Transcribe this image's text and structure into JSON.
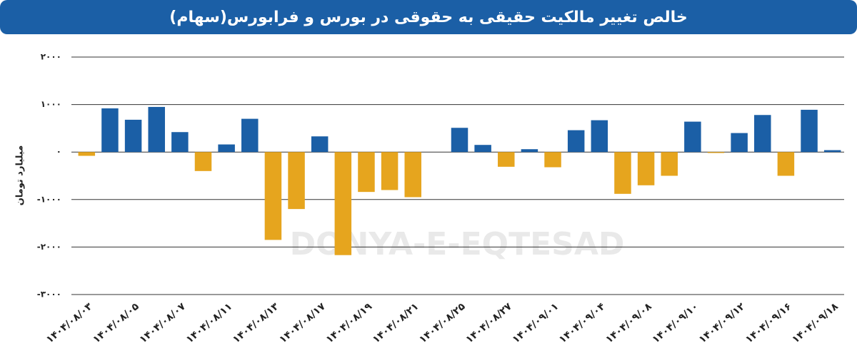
{
  "chart_data": {
    "type": "bar",
    "title": "خالص تغییر مالکیت حقیقی به حقوقی در بورس و فرابورس(سهام)",
    "y_label": "میلیارد تومان",
    "watermark": "DONYA-E-EQTESAD",
    "categories": [
      "۱۴۰۴/۰۸/۰۳",
      null,
      "۱۴۰۴/۰۸/۰۵",
      null,
      "۱۴۰۴/۰۸/۰۷",
      null,
      "۱۴۰۴/۰۸/۱۱",
      null,
      "۱۴۰۴/۰۸/۱۳",
      null,
      "۱۴۰۴/۰۸/۱۷",
      null,
      "۱۴۰۴/۰۸/۱۹",
      null,
      "۱۴۰۴/۰۸/۲۱",
      null,
      "۱۴۰۴/۰۸/۲۵",
      null,
      "۱۴۰۴/۰۸/۲۷",
      null,
      "۱۴۰۴/۰۹/۰۱",
      null,
      "۱۴۰۴/۰۹/۰۴",
      null,
      "۱۴۰۴/۰۹/۰۸",
      null,
      "۱۴۰۴/۰۹/۱۰",
      null,
      "۱۴۰۴/۰۹/۱۲",
      null,
      "۱۴۰۴/۰۹/۱۶",
      null,
      "۱۴۰۴/۰۹/۱۸"
    ],
    "values": [
      -80,
      920,
      680,
      950,
      420,
      -400,
      160,
      700,
      -1850,
      -1200,
      330,
      -2170,
      -840,
      -800,
      -950,
      0,
      510,
      150,
      -310,
      60,
      -320,
      460,
      670,
      -880,
      -700,
      -500,
      640,
      -20,
      400,
      780,
      -500,
      890,
      40
    ],
    "positive_color": "#1b5fa6",
    "negative_color": "#e6a51e",
    "ylim": [
      -3000,
      2000
    ],
    "yticks": [
      {
        "value": -3000,
        "label": "-۳۰۰۰"
      },
      {
        "value": -2000,
        "label": "-۲۰۰۰"
      },
      {
        "value": -1000,
        "label": "-۱۰۰۰"
      },
      {
        "value": 0,
        "label": "۰"
      },
      {
        "value": 1000,
        "label": "۱۰۰۰"
      },
      {
        "value": 2000,
        "label": "۲۰۰۰"
      }
    ],
    "grid": true
  }
}
